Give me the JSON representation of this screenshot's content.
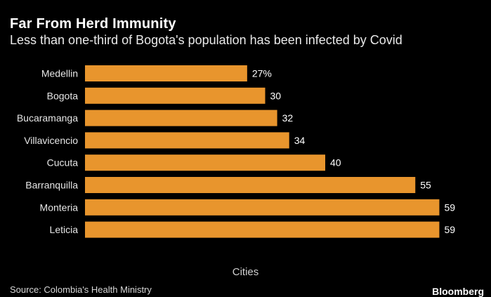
{
  "title": "Far From Herd Immunity",
  "subtitle": "Less than one-third of Bogota's population has been infected by Covid",
  "source": "Source: Colombia's Health Ministry",
  "brand": "Bloomberg",
  "colors": {
    "background": "#000000",
    "bar": "#E8952D",
    "text": "#FFFFFF"
  },
  "chart_data": {
    "type": "bar",
    "orientation": "horizontal",
    "xlabel": "Cities",
    "categories": [
      "Medellin",
      "Bogota",
      "Bucaramanga",
      "Villavicencio",
      "Cucuta",
      "Barranquilla",
      "Monteria",
      "Leticia"
    ],
    "values": [
      27,
      30,
      32,
      34,
      40,
      55,
      59,
      59
    ],
    "data_labels": [
      "27%",
      "30",
      "32",
      "34",
      "40",
      "55",
      "59",
      "59"
    ],
    "xlim": [
      0,
      59
    ],
    "grid": false
  }
}
